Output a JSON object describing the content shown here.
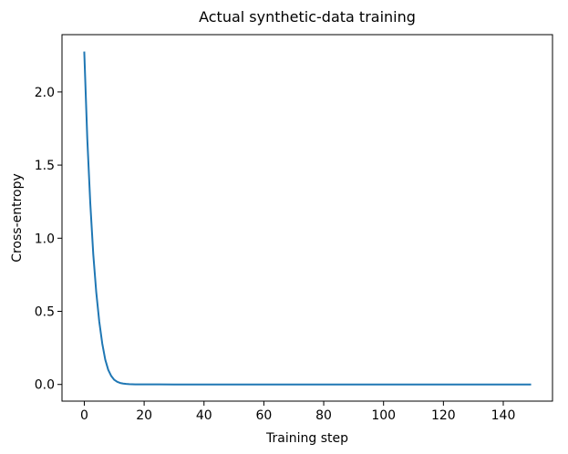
{
  "chart_data": {
    "type": "line",
    "title": "Actual synthetic-data training",
    "xlabel": "Training step",
    "ylabel": "Cross-entropy",
    "xlim": [
      -7.45,
      156.45
    ],
    "ylim": [
      -0.114,
      2.392
    ],
    "xticks": [
      0,
      20,
      40,
      60,
      80,
      100,
      120,
      140
    ],
    "yticks": [
      0.0,
      0.5,
      1.0,
      1.5,
      2.0
    ],
    "xtick_labels": [
      "0",
      "20",
      "40",
      "60",
      "80",
      "100",
      "120",
      "140"
    ],
    "ytick_labels": [
      "0.0",
      "0.5",
      "1.0",
      "1.5",
      "2.0"
    ],
    "grid": false,
    "series": [
      {
        "color": "#1f77b4",
        "x": [
          0,
          1,
          2,
          3,
          4,
          5,
          6,
          7,
          8,
          9,
          10,
          11,
          12,
          13,
          14,
          15,
          16,
          17,
          18,
          19,
          20,
          25,
          30,
          40,
          50,
          60,
          70,
          80,
          90,
          100,
          110,
          120,
          130,
          140,
          149
        ],
        "y": [
          2.27,
          1.68,
          1.24,
          0.89,
          0.63,
          0.43,
          0.28,
          0.17,
          0.1,
          0.058,
          0.032,
          0.018,
          0.01,
          0.006,
          0.0035,
          0.002,
          0.0013,
          0.0009,
          0.0006,
          0.0004,
          0.0003,
          0.0002,
          0.0001,
          0.0001,
          0.0001,
          0.0001,
          0.0001,
          0.0001,
          0.0001,
          0.0001,
          0.0001,
          0.0001,
          0.0001,
          0.0001,
          0.0001
        ]
      }
    ]
  }
}
